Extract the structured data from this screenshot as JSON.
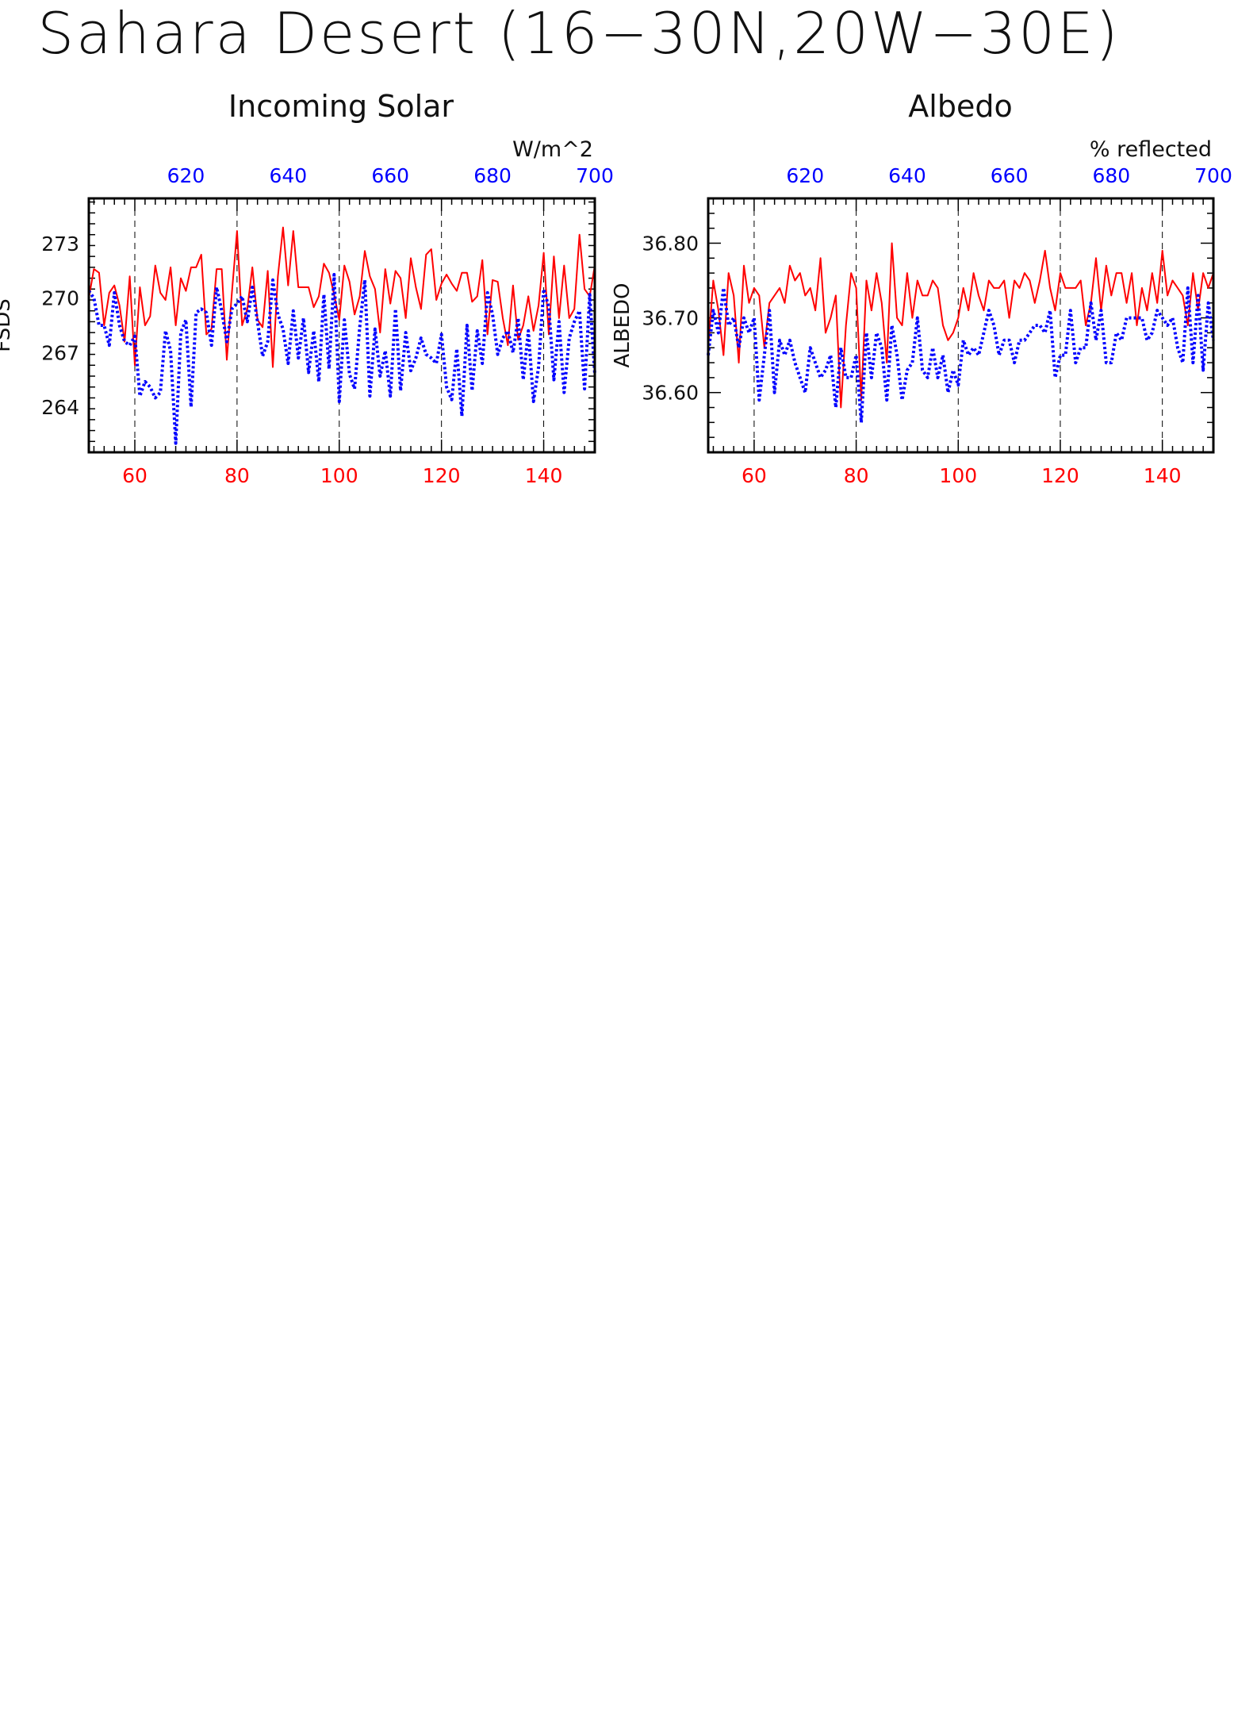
{
  "title": "Sahara Desert (16−30N,20W−30E)",
  "colors": {
    "red_series": "#ff0000",
    "blue_series": "#0000ff",
    "axis": "#000000",
    "grid": "#000000"
  },
  "chart_data": [
    {
      "type": "line",
      "title": "Incoming Solar",
      "ylabel": "FSDS",
      "units": "W/m^2",
      "x_bottom": {
        "ticks": [
          60,
          80,
          100,
          120,
          140
        ],
        "range": [
          51,
          150
        ]
      },
      "x_top": {
        "ticks": [
          620,
          640,
          660,
          680,
          700
        ],
        "range": [
          601,
          700
        ]
      },
      "ylim": [
        261.5,
        275.5
      ],
      "y_ticks": [
        264,
        267,
        270,
        273
      ],
      "y_tick_labels": [
        "264",
        "267",
        "270",
        "273"
      ],
      "series": [
        {
          "values": [
            270.0,
            271.6,
            271.4,
            268.5,
            270.3,
            270.7,
            269.6,
            267.6,
            271.2,
            266.3,
            270.6,
            268.5,
            269.0,
            271.8,
            270.3,
            269.9,
            271.7,
            268.5,
            271.1,
            270.4,
            271.7,
            271.7,
            272.4,
            268.0,
            268.3,
            271.6,
            271.6,
            266.6,
            270.3,
            273.7,
            268.5,
            269.4,
            271.7,
            268.8,
            268.4,
            271.5,
            266.2,
            271.2,
            273.9,
            270.7,
            273.7,
            270.6,
            270.6,
            270.6,
            269.5,
            270.1,
            271.9,
            271.4,
            270.2,
            268.8,
            271.8,
            270.9,
            269.1,
            270.1,
            272.6,
            271.2,
            270.5,
            268.1,
            271.6,
            269.7,
            271.5,
            271.1,
            268.9,
            272.2,
            270.6,
            269.4,
            272.4,
            272.7,
            269.9,
            270.8,
            271.3,
            270.8,
            270.4,
            271.4,
            271.4,
            269.8,
            270.1,
            272.1,
            268.0,
            271.0,
            270.9,
            268.9,
            267.4,
            270.7,
            267.7,
            268.5,
            270.1,
            268.2,
            269.6,
            272.5,
            268.0,
            272.3,
            268.9,
            271.8,
            268.9,
            269.4,
            273.5,
            270.5,
            270.1,
            271.8
          ]
        },
        {
          "values": [
            270.4,
            270.0,
            268.5,
            268.5,
            267.4,
            270.3,
            268.5,
            267.6,
            267.4,
            267.9,
            264.6,
            265.4,
            265.1,
            264.5,
            264.8,
            268.2,
            267.1,
            262.0,
            268.1,
            268.8,
            264.0,
            269.2,
            269.4,
            269.2,
            267.4,
            270.6,
            269.3,
            267.6,
            269.4,
            269.7,
            270.1,
            268.7,
            270.6,
            268.7,
            266.8,
            267.6,
            271.0,
            269.1,
            268.3,
            266.4,
            269.3,
            266.7,
            268.9,
            265.9,
            268.2,
            265.4,
            270.2,
            266.1,
            271.3,
            264.3,
            268.8,
            265.8,
            265.0,
            268.4,
            271.0,
            264.6,
            268.3,
            265.7,
            267.1,
            264.6,
            269.4,
            264.9,
            268.1,
            266.0,
            266.7,
            267.8,
            266.9,
            266.7,
            266.4,
            268.0,
            265.1,
            264.4,
            267.2,
            263.5,
            268.5,
            264.9,
            268.2,
            266.4,
            270.3,
            269.1,
            266.9,
            267.8,
            268.2,
            267.0,
            268.9,
            265.5,
            268.2,
            264.3,
            266.2,
            270.5,
            269.5,
            265.5,
            268.7,
            264.8,
            267.8,
            268.7,
            269.3,
            265.0,
            270.2,
            265.8
          ]
        }
      ]
    },
    {
      "type": "line",
      "title": "Albedo",
      "ylabel": "ALBEDO",
      "units": "% reflected",
      "x_bottom": {
        "ticks": [
          60,
          80,
          100,
          120,
          140
        ],
        "range": [
          51,
          150
        ]
      },
      "x_top": {
        "ticks": [
          620,
          640,
          660,
          680,
          700
        ],
        "range": [
          601,
          700
        ]
      },
      "ylim": [
        36.52,
        36.86
      ],
      "y_ticks": [
        36.6,
        36.7,
        36.8
      ],
      "y_tick_labels": [
        "36.60",
        "36.70",
        "36.80"
      ],
      "series": [
        {
          "values": [
            36.66,
            36.75,
            36.71,
            36.65,
            36.76,
            36.73,
            36.64,
            36.77,
            36.72,
            36.74,
            36.73,
            36.66,
            36.72,
            36.73,
            36.74,
            36.72,
            36.77,
            36.75,
            36.76,
            36.73,
            36.74,
            36.71,
            36.78,
            36.68,
            36.7,
            36.73,
            36.58,
            36.69,
            36.76,
            36.74,
            36.59,
            36.75,
            36.71,
            36.76,
            36.72,
            36.64,
            36.8,
            36.7,
            36.69,
            36.76,
            36.7,
            36.75,
            36.73,
            36.73,
            36.75,
            36.74,
            36.69,
            36.67,
            36.68,
            36.7,
            36.74,
            36.71,
            36.76,
            36.73,
            36.71,
            36.75,
            36.74,
            36.74,
            36.75,
            36.7,
            36.75,
            36.74,
            36.76,
            36.75,
            36.72,
            36.75,
            36.79,
            36.74,
            36.71,
            36.76,
            36.74,
            36.74,
            36.74,
            36.75,
            36.69,
            36.72,
            36.78,
            36.71,
            36.77,
            36.73,
            36.76,
            36.76,
            36.72,
            36.76,
            36.69,
            36.74,
            36.71,
            36.76,
            36.72,
            36.79,
            36.73,
            36.75,
            36.74,
            36.73,
            36.69,
            36.76,
            36.71,
            36.76,
            36.74,
            36.76
          ]
        },
        {
          "values": [
            36.65,
            36.71,
            36.68,
            36.74,
            36.69,
            36.7,
            36.66,
            36.7,
            36.68,
            36.7,
            36.59,
            36.65,
            36.71,
            36.6,
            36.67,
            36.65,
            36.67,
            36.64,
            36.62,
            36.6,
            36.66,
            36.64,
            36.62,
            36.63,
            36.65,
            36.58,
            36.66,
            36.62,
            36.62,
            36.65,
            36.56,
            36.68,
            36.62,
            36.68,
            36.66,
            36.59,
            36.69,
            36.65,
            36.59,
            36.63,
            36.64,
            36.7,
            36.63,
            36.62,
            36.66,
            36.62,
            36.65,
            36.6,
            36.63,
            36.61,
            36.67,
            36.65,
            36.66,
            36.65,
            36.68,
            36.71,
            36.69,
            36.65,
            36.67,
            36.67,
            36.64,
            36.67,
            36.67,
            36.68,
            36.69,
            36.69,
            36.68,
            36.71,
            36.62,
            36.65,
            36.65,
            36.71,
            36.64,
            36.66,
            36.66,
            36.72,
            36.67,
            36.71,
            36.64,
            36.64,
            36.68,
            36.67,
            36.7,
            36.7,
            36.7,
            36.7,
            36.67,
            36.68,
            36.71,
            36.7,
            36.69,
            36.7,
            36.66,
            36.64,
            36.74,
            36.64,
            36.73,
            36.63,
            36.72,
            36.67
          ]
        }
      ]
    }
  ]
}
